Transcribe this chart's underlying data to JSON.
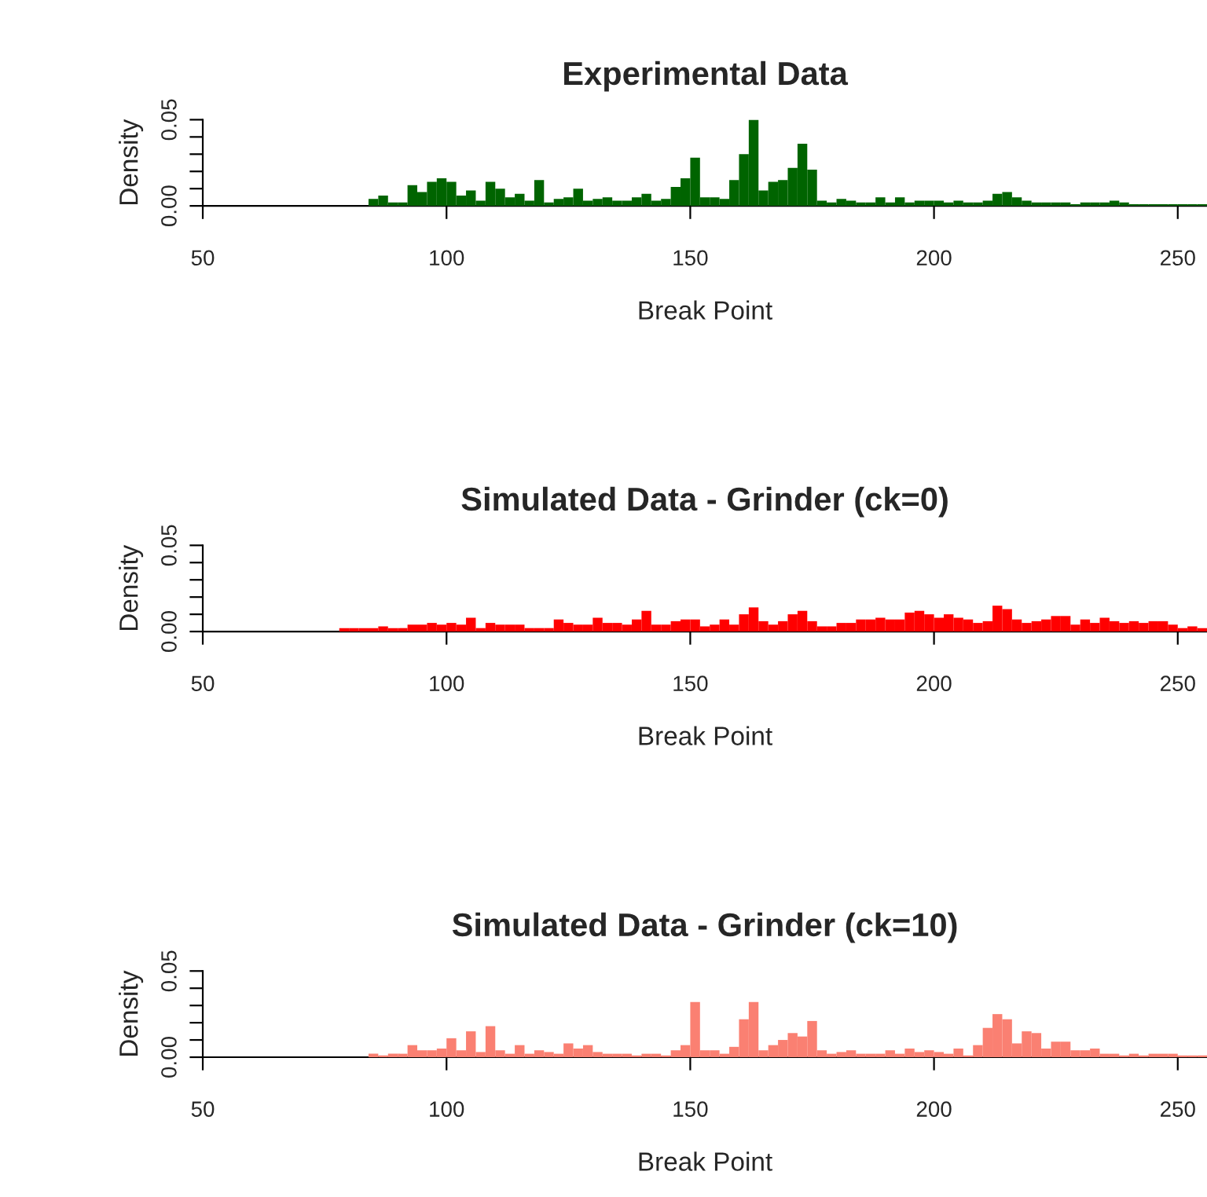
{
  "chart_data": [
    {
      "type": "histogram",
      "title": "Experimental Data",
      "xlabel": "Break Point",
      "ylabel": "Density",
      "color": "#006400",
      "bins": [
        84,
        86,
        88,
        90,
        92,
        94,
        96,
        98,
        100,
        102,
        104,
        106,
        108,
        110,
        112,
        114,
        116,
        118,
        120,
        122,
        124,
        126,
        128,
        130,
        132,
        134,
        136,
        138,
        140,
        142,
        144,
        146,
        148,
        150,
        152,
        154,
        156,
        158,
        160,
        162,
        164,
        166,
        168,
        170,
        172,
        174,
        176,
        178,
        180,
        182,
        184,
        186,
        188,
        190,
        192,
        194,
        196,
        198,
        200,
        202,
        204,
        206,
        208,
        210,
        212,
        214,
        216,
        218,
        220,
        222,
        224,
        226,
        228,
        230,
        232,
        234,
        236,
        238,
        240,
        242,
        244,
        246,
        248,
        250,
        252,
        254,
        256
      ],
      "values": [
        0.004,
        0.006,
        0.002,
        0.002,
        0.012,
        0.008,
        0.014,
        0.016,
        0.014,
        0.006,
        0.009,
        0.003,
        0.014,
        0.01,
        0.005,
        0.007,
        0.003,
        0.015,
        0.002,
        0.004,
        0.005,
        0.01,
        0.003,
        0.004,
        0.005,
        0.003,
        0.003,
        0.005,
        0.007,
        0.003,
        0.004,
        0.011,
        0.016,
        0.028,
        0.005,
        0.005,
        0.004,
        0.015,
        0.03,
        0.05,
        0.009,
        0.014,
        0.015,
        0.022,
        0.036,
        0.021,
        0.003,
        0.002,
        0.004,
        0.003,
        0.002,
        0.002,
        0.005,
        0.002,
        0.005,
        0.002,
        0.003,
        0.003,
        0.003,
        0.002,
        0.003,
        0.002,
        0.002,
        0.003,
        0.007,
        0.008,
        0.005,
        0.003,
        0.002,
        0.002,
        0.002,
        0.002,
        0.001,
        0.002,
        0.002,
        0.002,
        0.003,
        0.002,
        0.001,
        0.001,
        0.001,
        0.001,
        0.001,
        0.001,
        0.001,
        0.001
      ],
      "xlim": [
        50,
        256
      ],
      "ylim": [
        0,
        0.05
      ],
      "xticks": [
        50,
        100,
        150,
        200,
        250
      ],
      "yticks": [
        {
          "value": 0,
          "label": "0.00"
        },
        {
          "value": 0.01,
          "label": null
        },
        {
          "value": 0.02,
          "label": null
        },
        {
          "value": 0.03,
          "label": null
        },
        {
          "value": 0.04,
          "label": null
        },
        {
          "value": 0.05,
          "label": "0.05"
        }
      ],
      "grid": false
    },
    {
      "type": "histogram",
      "title": "Simulated Data - Grinder (ck=0)",
      "xlabel": "Break Point",
      "ylabel": "Density",
      "color": "#ff0000",
      "bins": [
        78,
        80,
        82,
        84,
        86,
        88,
        90,
        92,
        94,
        96,
        98,
        100,
        102,
        104,
        106,
        108,
        110,
        112,
        114,
        116,
        118,
        120,
        122,
        124,
        126,
        128,
        130,
        132,
        134,
        136,
        138,
        140,
        142,
        144,
        146,
        148,
        150,
        152,
        154,
        156,
        158,
        160,
        162,
        164,
        166,
        168,
        170,
        172,
        174,
        176,
        178,
        180,
        182,
        184,
        186,
        188,
        190,
        192,
        194,
        196,
        198,
        200,
        202,
        204,
        206,
        208,
        210,
        212,
        214,
        216,
        218,
        220,
        222,
        224,
        226,
        228,
        230,
        232,
        234,
        236,
        238,
        240,
        242,
        244,
        246,
        248,
        250,
        252,
        254,
        256
      ],
      "values": [
        0.002,
        0.002,
        0.002,
        0.002,
        0.003,
        0.002,
        0.002,
        0.004,
        0.004,
        0.005,
        0.004,
        0.005,
        0.004,
        0.008,
        0.002,
        0.005,
        0.004,
        0.004,
        0.004,
        0.002,
        0.002,
        0.002,
        0.007,
        0.005,
        0.004,
        0.004,
        0.008,
        0.005,
        0.005,
        0.004,
        0.007,
        0.012,
        0.004,
        0.004,
        0.006,
        0.007,
        0.007,
        0.003,
        0.004,
        0.007,
        0.004,
        0.01,
        0.014,
        0.006,
        0.004,
        0.006,
        0.01,
        0.012,
        0.006,
        0.003,
        0.003,
        0.005,
        0.005,
        0.007,
        0.007,
        0.008,
        0.007,
        0.007,
        0.011,
        0.012,
        0.01,
        0.008,
        0.01,
        0.008,
        0.007,
        0.005,
        0.006,
        0.015,
        0.013,
        0.007,
        0.005,
        0.006,
        0.007,
        0.009,
        0.009,
        0.004,
        0.007,
        0.005,
        0.008,
        0.006,
        0.005,
        0.006,
        0.005,
        0.006,
        0.006,
        0.004,
        0.002,
        0.003,
        0.002
      ],
      "xlim": [
        50,
        256
      ],
      "ylim": [
        0,
        0.05
      ],
      "xticks": [
        50,
        100,
        150,
        200,
        250
      ],
      "yticks": [
        {
          "value": 0,
          "label": "0.00"
        },
        {
          "value": 0.01,
          "label": null
        },
        {
          "value": 0.02,
          "label": null
        },
        {
          "value": 0.03,
          "label": null
        },
        {
          "value": 0.04,
          "label": null
        },
        {
          "value": 0.05,
          "label": "0.05"
        }
      ],
      "grid": false
    },
    {
      "type": "histogram",
      "title": "Simulated Data - Grinder (ck=10)",
      "xlabel": "Break Point",
      "ylabel": "Density",
      "color": "#fa8072",
      "bins": [
        84,
        86,
        88,
        90,
        92,
        94,
        96,
        98,
        100,
        102,
        104,
        106,
        108,
        110,
        112,
        114,
        116,
        118,
        120,
        122,
        124,
        126,
        128,
        130,
        132,
        134,
        136,
        138,
        140,
        142,
        144,
        146,
        148,
        150,
        152,
        154,
        156,
        158,
        160,
        162,
        164,
        166,
        168,
        170,
        172,
        174,
        176,
        178,
        180,
        182,
        184,
        186,
        188,
        190,
        192,
        194,
        196,
        198,
        200,
        202,
        204,
        206,
        208,
        210,
        212,
        214,
        216,
        218,
        220,
        222,
        224,
        226,
        228,
        230,
        232,
        234,
        236,
        238,
        240,
        242,
        244,
        246,
        248,
        250,
        252,
        254,
        256
      ],
      "values": [
        0.002,
        0.001,
        0.002,
        0.002,
        0.007,
        0.004,
        0.004,
        0.005,
        0.011,
        0.004,
        0.015,
        0.003,
        0.018,
        0.004,
        0.002,
        0.007,
        0.002,
        0.004,
        0.003,
        0.002,
        0.008,
        0.005,
        0.007,
        0.003,
        0.002,
        0.002,
        0.002,
        0.001,
        0.002,
        0.002,
        0.001,
        0.004,
        0.007,
        0.032,
        0.004,
        0.004,
        0.002,
        0.006,
        0.022,
        0.032,
        0.004,
        0.007,
        0.01,
        0.014,
        0.012,
        0.021,
        0.004,
        0.002,
        0.003,
        0.004,
        0.002,
        0.002,
        0.002,
        0.004,
        0.002,
        0.005,
        0.003,
        0.004,
        0.003,
        0.002,
        0.005,
        0.001,
        0.007,
        0.017,
        0.025,
        0.022,
        0.008,
        0.015,
        0.014,
        0.005,
        0.009,
        0.009,
        0.004,
        0.004,
        0.005,
        0.002,
        0.002,
        0.001,
        0.002,
        0.001,
        0.002,
        0.002,
        0.002,
        0.001,
        0.001,
        0.001
      ],
      "xlim": [
        50,
        256
      ],
      "ylim": [
        0,
        0.05
      ],
      "xticks": [
        50,
        100,
        150,
        200,
        250
      ],
      "yticks": [
        {
          "value": 0,
          "label": "0.00"
        },
        {
          "value": 0.01,
          "label": null
        },
        {
          "value": 0.02,
          "label": null
        },
        {
          "value": 0.03,
          "label": null
        },
        {
          "value": 0.04,
          "label": null
        },
        {
          "value": 0.05,
          "label": "0.05"
        }
      ],
      "grid": false
    }
  ]
}
